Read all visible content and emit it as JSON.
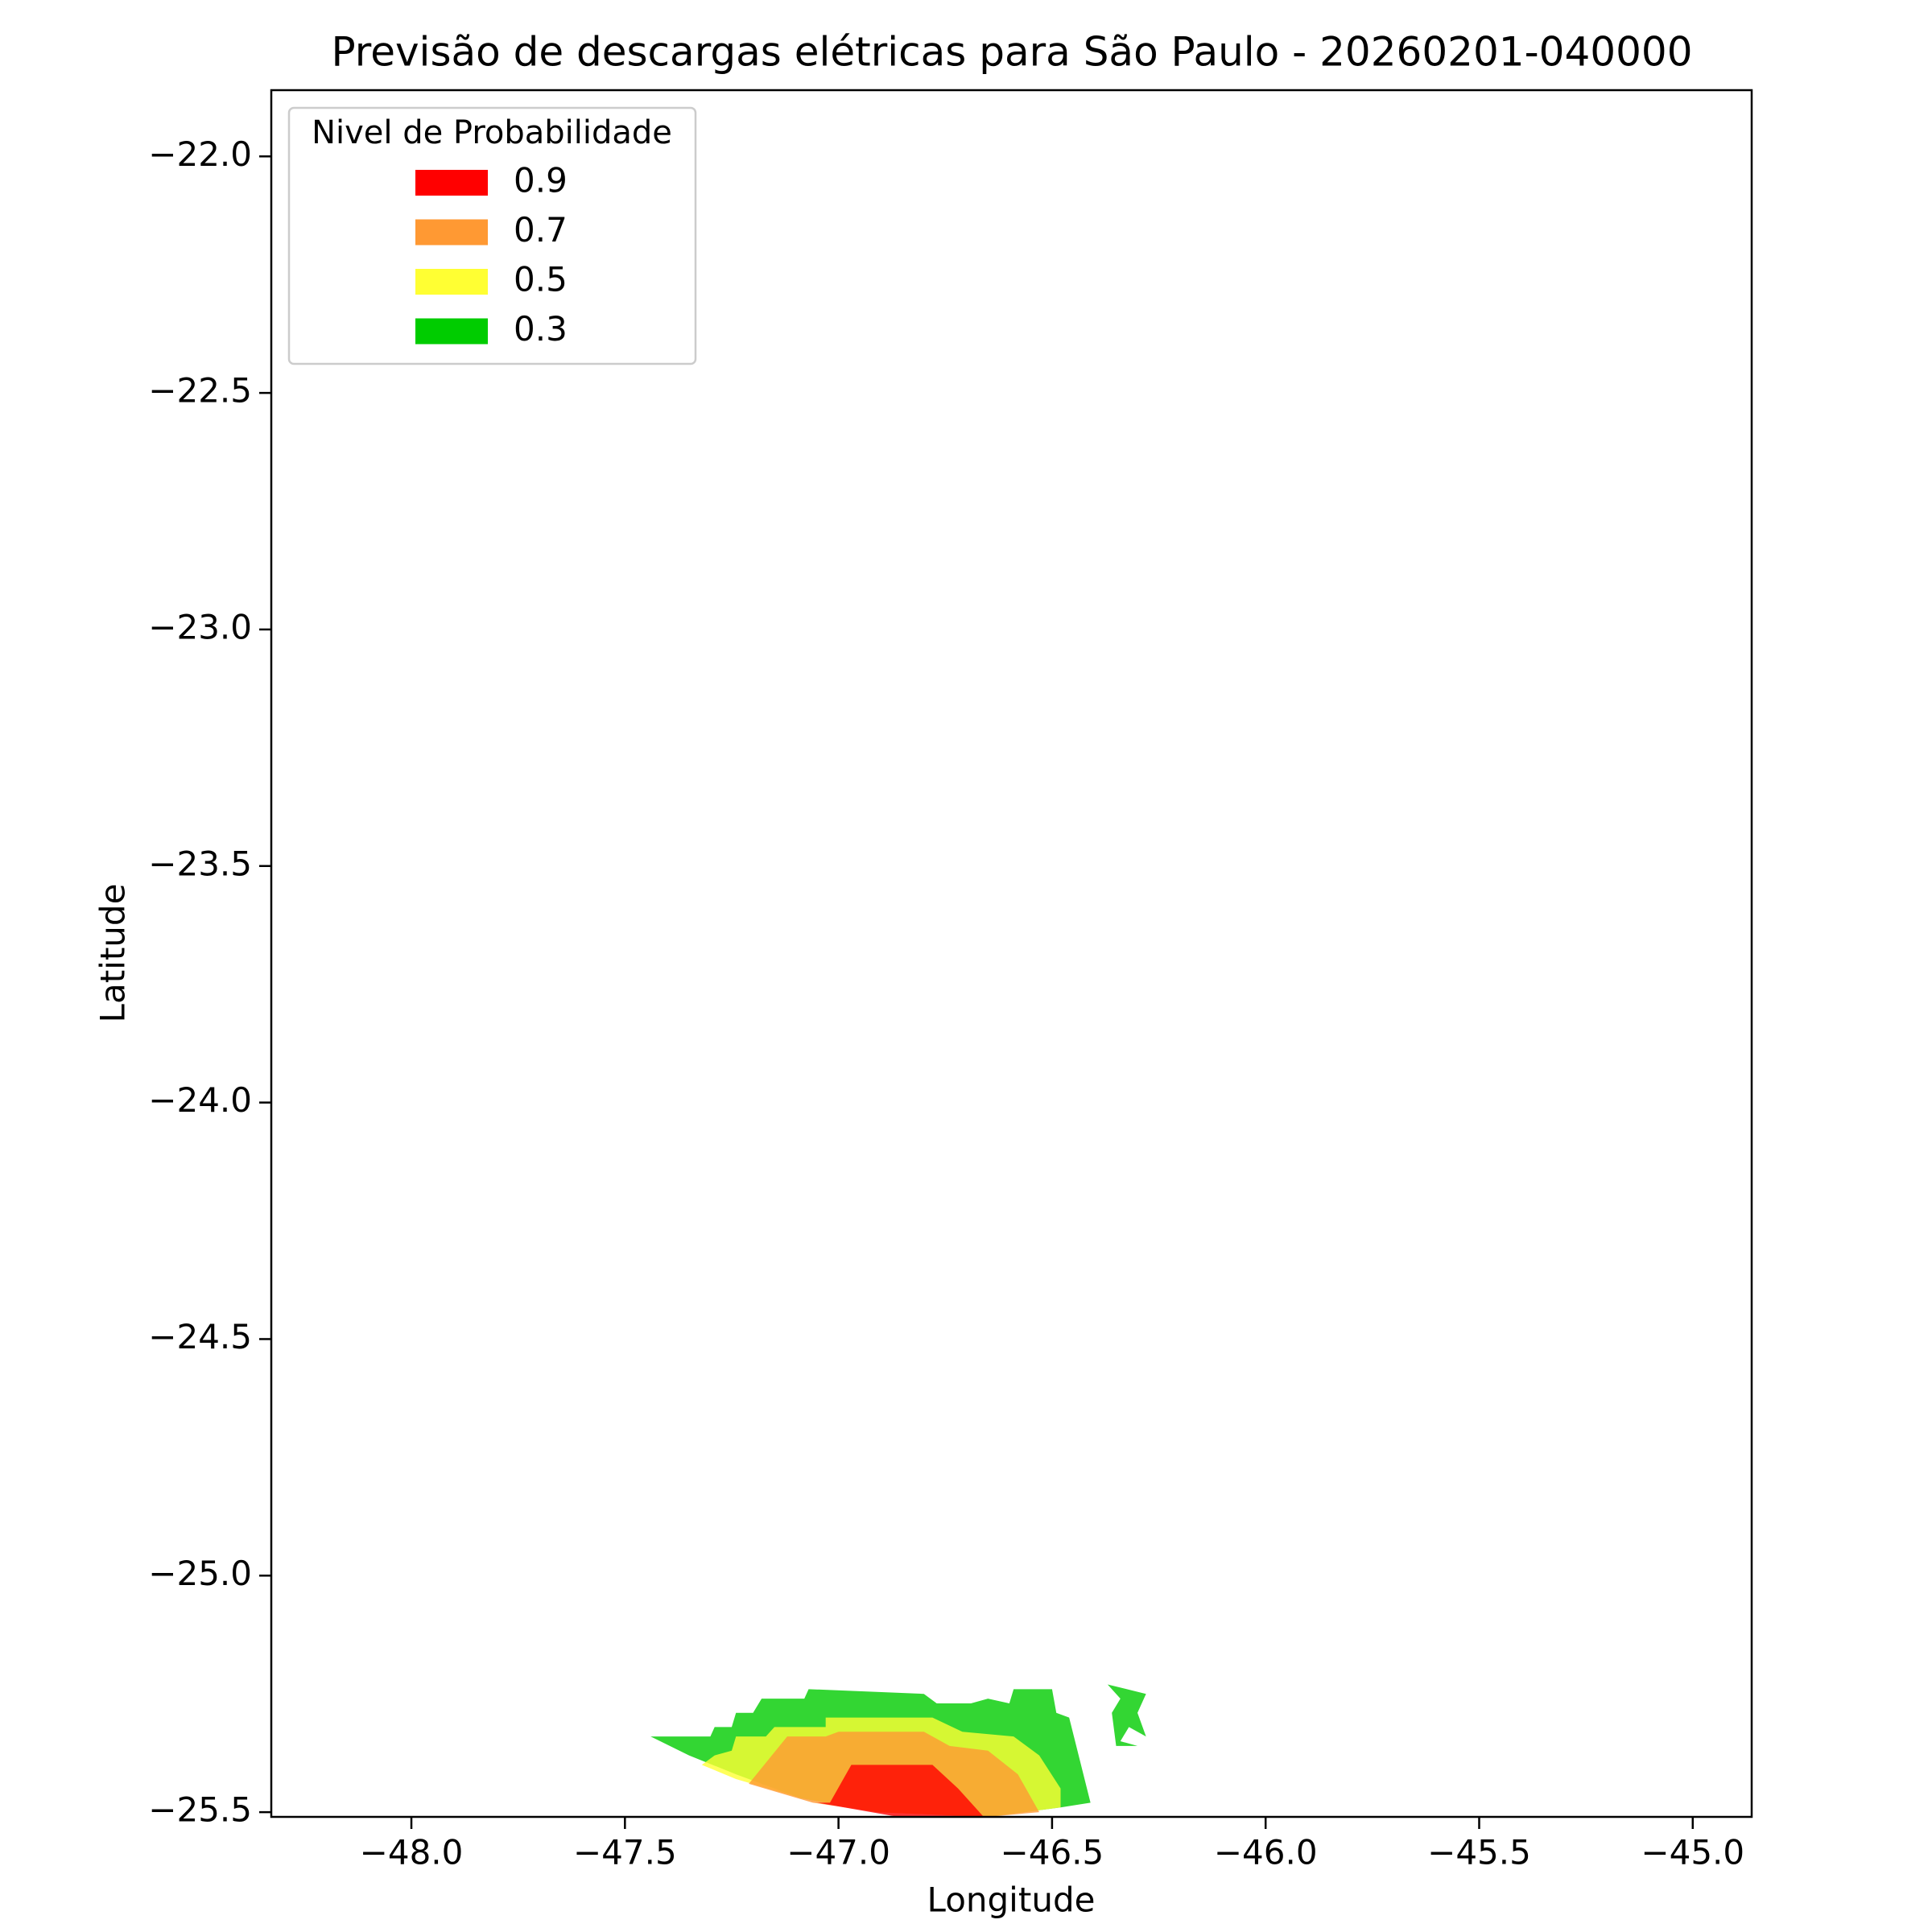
{
  "chart_data": {
    "type": "contour",
    "title": "Previsão de descargas elétricas para São Paulo - 20260201-040000",
    "xlabel": "Longitude",
    "ylabel": "Latitude",
    "xlim": [
      -48.328,
      -44.862
    ],
    "ylim": [
      -25.51,
      -21.86
    ],
    "xticks": [
      {
        "value": -48.0,
        "label": "−48.0"
      },
      {
        "value": -47.5,
        "label": "−47.5"
      },
      {
        "value": -47.0,
        "label": "−47.0"
      },
      {
        "value": -46.5,
        "label": "−46.5"
      },
      {
        "value": -46.0,
        "label": "−46.0"
      },
      {
        "value": -45.5,
        "label": "−45.5"
      },
      {
        "value": -45.0,
        "label": "−45.0"
      }
    ],
    "yticks": [
      {
        "value": -22.0,
        "label": "−22.0"
      },
      {
        "value": -22.5,
        "label": "−22.5"
      },
      {
        "value": -23.0,
        "label": "−23.0"
      },
      {
        "value": -23.5,
        "label": "−23.5"
      },
      {
        "value": -24.0,
        "label": "−24.0"
      },
      {
        "value": -24.5,
        "label": "−24.5"
      },
      {
        "value": -25.0,
        "label": "−25.0"
      },
      {
        "value": -25.5,
        "label": "−25.5"
      }
    ],
    "legend_title": "Nivel de Probabilidade",
    "legend_position": "upper left",
    "alpha": 0.8,
    "series": [
      {
        "name": "0.9",
        "color": "#ff0000",
        "polygons": [
          [
            [
              -47.05,
              -25.48
            ],
            [
              -47.02,
              -25.48
            ],
            [
              -46.97,
              -25.4
            ],
            [
              -46.78,
              -25.4
            ],
            [
              -46.72,
              -25.45
            ],
            [
              -46.66,
              -25.51
            ],
            [
              -46.86,
              -25.51
            ]
          ]
        ]
      },
      {
        "name": "0.7",
        "color": "#ff9933",
        "polygons": [
          [
            [
              -47.21,
              -25.44
            ],
            [
              -47.12,
              -25.34
            ],
            [
              -47.03,
              -25.34
            ],
            [
              -47.0,
              -25.33
            ],
            [
              -46.8,
              -25.33
            ],
            [
              -46.74,
              -25.36
            ],
            [
              -46.65,
              -25.37
            ],
            [
              -46.58,
              -25.42
            ],
            [
              -46.53,
              -25.5
            ],
            [
              -46.65,
              -25.51
            ],
            [
              -46.91,
              -25.5
            ],
            [
              -47.06,
              -25.48
            ]
          ]
        ]
      },
      {
        "name": "0.5",
        "color": "#ffff33",
        "polygons": [
          [
            [
              -47.32,
              -25.4
            ],
            [
              -47.29,
              -25.38
            ],
            [
              -47.25,
              -25.37
            ],
            [
              -47.24,
              -25.34
            ],
            [
              -47.17,
              -25.34
            ],
            [
              -47.15,
              -25.32
            ],
            [
              -47.03,
              -25.32
            ],
            [
              -47.03,
              -25.3
            ],
            [
              -46.78,
              -25.3
            ],
            [
              -46.71,
              -25.33
            ],
            [
              -46.59,
              -25.34
            ],
            [
              -46.53,
              -25.38
            ],
            [
              -46.48,
              -25.45
            ],
            [
              -46.48,
              -25.49
            ],
            [
              -46.65,
              -25.51
            ],
            [
              -46.91,
              -25.5
            ],
            [
              -47.09,
              -25.47
            ],
            [
              -47.24,
              -25.43
            ]
          ]
        ]
      },
      {
        "name": "0.3",
        "color": "#00cc00",
        "polygons": [
          [
            [
              -47.44,
              -25.34
            ],
            [
              -47.3,
              -25.34
            ],
            [
              -47.29,
              -25.32
            ],
            [
              -47.25,
              -25.32
            ],
            [
              -47.24,
              -25.29
            ],
            [
              -47.2,
              -25.29
            ],
            [
              -47.18,
              -25.26
            ],
            [
              -47.08,
              -25.26
            ],
            [
              -47.07,
              -25.24
            ],
            [
              -46.8,
              -25.25
            ],
            [
              -46.77,
              -25.27
            ],
            [
              -46.69,
              -25.27
            ],
            [
              -46.65,
              -25.26
            ],
            [
              -46.6,
              -25.27
            ],
            [
              -46.59,
              -25.24
            ],
            [
              -46.5,
              -25.24
            ],
            [
              -46.49,
              -25.29
            ],
            [
              -46.46,
              -25.3
            ],
            [
              -46.41,
              -25.48
            ],
            [
              -46.48,
              -25.49
            ],
            [
              -46.65,
              -25.51
            ],
            [
              -46.91,
              -25.5
            ],
            [
              -47.09,
              -25.47
            ],
            [
              -47.24,
              -25.42
            ],
            [
              -47.35,
              -25.38
            ]
          ],
          [
            [
              -46.37,
              -25.23
            ],
            [
              -46.28,
              -25.25
            ],
            [
              -46.3,
              -25.29
            ],
            [
              -46.28,
              -25.34
            ],
            [
              -46.32,
              -25.32
            ],
            [
              -46.34,
              -25.35
            ],
            [
              -46.3,
              -25.36
            ],
            [
              -46.35,
              -25.36
            ],
            [
              -46.36,
              -25.29
            ],
            [
              -46.34,
              -25.26
            ]
          ]
        ]
      }
    ]
  }
}
